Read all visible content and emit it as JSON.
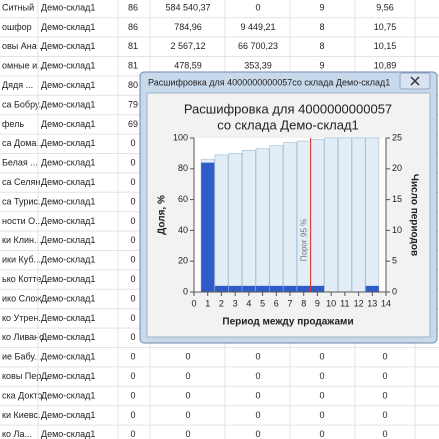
{
  "table": {
    "rows": [
      [
        "Ситный",
        "Демо-склад1",
        "86",
        "584 540,37",
        "0",
        "9",
        "9,56"
      ],
      [
        "ошфор",
        "Демо-склад1",
        "86",
        "784,96",
        "9 449,21",
        "8",
        "10,75"
      ],
      [
        "овы Ана...",
        "Демо-склад1",
        "81",
        "2 567,12",
        "66 700,23",
        "8",
        "10,15"
      ],
      [
        "омные и...",
        "Демо-склад1",
        "81",
        "478,59",
        "353,39",
        "9",
        "10,89"
      ],
      [
        "Дядя ...",
        "Демо-склад1",
        "80"
      ],
      [
        "са Бобру...",
        "Демо-склад1",
        "79"
      ],
      [
        "фель",
        "Демо-склад1",
        "69"
      ],
      [
        "са Дома...",
        "Демо-склад1",
        "0"
      ],
      [
        "Белая ...",
        "Демо-склад1",
        "0"
      ],
      [
        "са Селян...",
        "Демо-склад1",
        "0"
      ],
      [
        "са Турис...",
        "Демо-склад1",
        "0"
      ],
      [
        "ности О...",
        "Демо-склад1",
        "0"
      ],
      [
        "ки Клин...",
        "Демо-склад1",
        "0"
      ],
      [
        "ики Куб...",
        "Демо-склад1",
        "0"
      ],
      [
        "ько Котте...",
        "Демо-склад1",
        "0"
      ],
      [
        "ико Слож...",
        "Демо-склад1",
        "0"
      ],
      [
        "ко Утрен...",
        "Демо-склад1",
        "0"
      ],
      [
        "ко Ливано...",
        "Демо-склад1",
        "0"
      ],
      [
        "ие Бабу...",
        "Демо-склад1",
        "0",
        "0",
        "0",
        "0",
        "0"
      ],
      [
        "ковы Пер...",
        "Демо-склад1",
        "0",
        "0",
        "0",
        "0",
        "0"
      ],
      [
        "ска Докто...",
        "Демо-склад1",
        "0",
        "0",
        "0",
        "0",
        "0"
      ],
      [
        "ки Киевс...",
        "Демо-склад1",
        "0",
        "0",
        "0",
        "0",
        "0"
      ],
      [
        "ко Ла...",
        "Демо-склад1",
        "0",
        "0",
        "0",
        "0",
        "0"
      ]
    ]
  },
  "window_title": "Расшифровка для 4000000000057со склада Демо-склад1",
  "chart_data": {
    "type": "bar",
    "title": "Расшифровка для 4000000000057",
    "subtitle": "со склада Демо-склад1",
    "xlabel": "Период между продажами",
    "ylabel": "Доля, %",
    "y2label": "Число периодов",
    "x": [
      1,
      2,
      3,
      4,
      5,
      6,
      7,
      8,
      9,
      10,
      11,
      12,
      13
    ],
    "xlim": [
      0,
      14
    ],
    "xticks": [
      0,
      1,
      2,
      3,
      4,
      5,
      6,
      7,
      8,
      9,
      10,
      11,
      12,
      13,
      14
    ],
    "ylim": [
      0,
      100
    ],
    "yticks": [
      0,
      20,
      40,
      60,
      80,
      100
    ],
    "y2lim": [
      0,
      25
    ],
    "y2ticks": [
      0,
      5,
      10,
      15,
      20,
      25
    ],
    "series": [
      {
        "color": "#e3edf5",
        "values": [
          86,
          89,
          90,
          92,
          93,
          95,
          97,
          98,
          99,
          100,
          100,
          100,
          100
        ]
      },
      {
        "color": "#2f5cc8",
        "axis": "y2",
        "values": [
          21,
          1,
          1,
          1,
          1,
          1,
          1,
          1,
          1,
          0,
          0,
          0,
          1
        ]
      }
    ],
    "threshold": {
      "value": 8.5,
      "label": "Порог 95 %"
    }
  }
}
